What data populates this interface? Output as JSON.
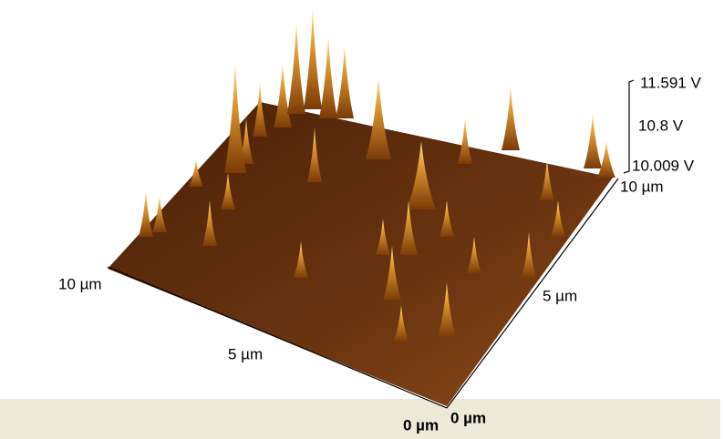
{
  "z_axis": {
    "labels": [
      "11.591 V",
      "10.8 V",
      "10.009 V"
    ]
  },
  "x_axis": {
    "labels": [
      "10 µm",
      "5 µm",
      "0 µm"
    ]
  },
  "y_axis": {
    "labels": [
      "0 µm",
      "5 µm",
      "10 µm"
    ]
  }
}
